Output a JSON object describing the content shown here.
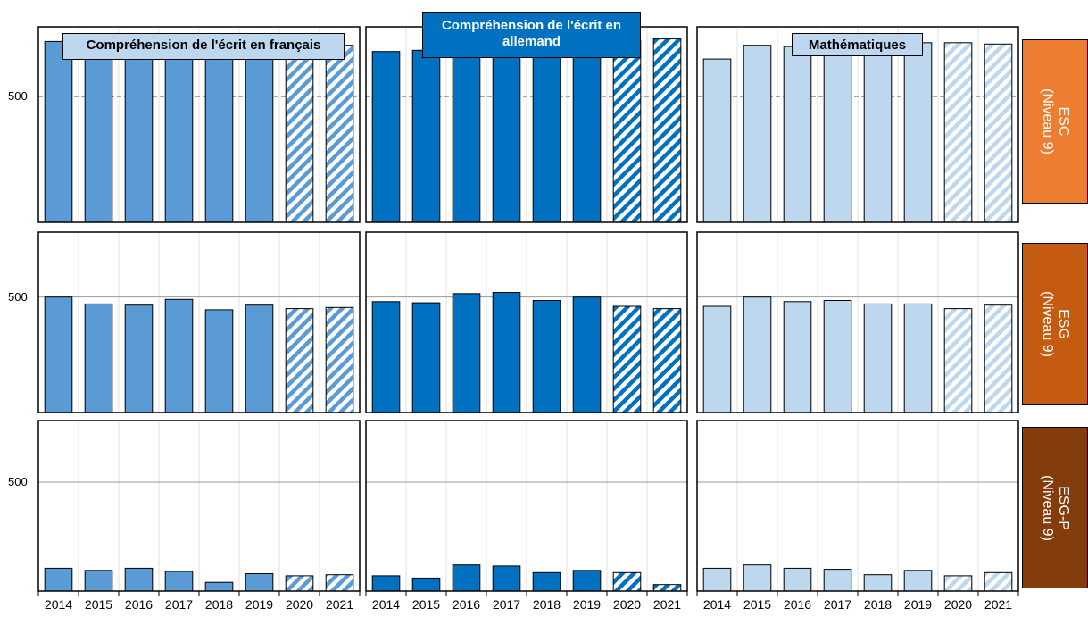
{
  "chart_data": {
    "type": "bar",
    "columns": [
      {
        "title": "Compréhension de l'écrit en français",
        "title_lines": [
          "Compréhension de l'écrit en français"
        ],
        "color": "#5b9bd5",
        "title_bg": "#bdd7ee",
        "title_fg": "#000000"
      },
      {
        "title": "Compréhension de l'écrit en allemand",
        "title_lines": [
          "Compréhension de l'écrit en",
          "allemand"
        ],
        "color": "#0070c0",
        "title_bg": "#0070c0",
        "title_fg": "#ffffff"
      },
      {
        "title": "Mathématiques",
        "title_lines": [
          "Mathématiques"
        ],
        "color": "#bdd7ee",
        "title_bg": "#bdd7ee",
        "title_fg": "#000000"
      }
    ],
    "rows": [
      {
        "line1": "ESC",
        "line2": "(Niveau 9)",
        "color": "#ed7d31"
      },
      {
        "line1": "ESG",
        "line2": "(Niveau 9)",
        "color": "#c55a11"
      },
      {
        "line1": "ESG-P",
        "line2": "(Niveau 9)",
        "color": "#843c0c"
      }
    ],
    "categories": [
      "2014",
      "2015",
      "2016",
      "2017",
      "2018",
      "2019",
      "2020",
      "2021"
    ],
    "hatched_categories": [
      "2020",
      "2021"
    ],
    "reference_value": 500,
    "ylim": [
      400,
      550
    ],
    "panels": [
      [
        {
          "values": [
            544,
            540,
            537,
            546,
            537,
            532,
            541,
            541
          ]
        },
        {
          "values": [
            536,
            537,
            545,
            546,
            544,
            546,
            545,
            546
          ]
        },
        {
          "values": [
            530,
            541,
            540,
            541,
            542,
            543,
            543,
            542
          ]
        }
      ],
      [
        {
          "values": [
            500,
            494,
            493,
            498,
            489,
            493,
            490,
            491
          ]
        },
        {
          "values": [
            496,
            495,
            503,
            504,
            497,
            500,
            492,
            490
          ]
        },
        {
          "values": [
            492,
            500,
            496,
            497,
            494,
            494,
            490,
            493
          ]
        }
      ],
      [
        {
          "values": [
            421,
            419,
            421,
            418,
            408,
            416,
            414,
            415
          ]
        },
        {
          "values": [
            414,
            412,
            424,
            423,
            417,
            419,
            417,
            406
          ]
        },
        {
          "values": [
            421,
            424,
            421,
            420,
            415,
            419,
            414,
            417
          ]
        }
      ]
    ],
    "ytick_labels": [
      "500",
      "500",
      "500"
    ],
    "grid": true,
    "legend": "none"
  }
}
